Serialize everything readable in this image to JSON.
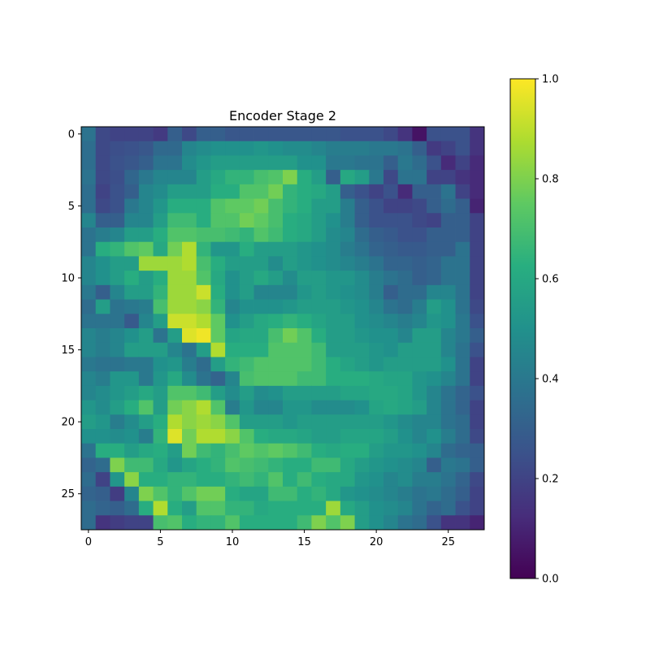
{
  "chart_data": {
    "type": "heatmap",
    "title": "Encoder Stage 2",
    "xlabel": "",
    "ylabel": "",
    "rows": 28,
    "cols": 28,
    "x_ticks": [
      0,
      5,
      10,
      15,
      20,
      25
    ],
    "y_ticks": [
      0,
      5,
      10,
      15,
      20,
      25
    ],
    "colorbar": {
      "min": 0.0,
      "max": 1.0,
      "ticks": [
        0.0,
        0.2,
        0.4,
        0.6,
        0.8,
        1.0
      ],
      "tick_labels": [
        "0.0",
        "0.2",
        "0.4",
        "0.6",
        "0.8",
        "1.0"
      ],
      "colormap": "viridis"
    },
    "values": [
      [
        0.38,
        0.22,
        0.2,
        0.2,
        0.2,
        0.17,
        0.3,
        0.22,
        0.3,
        0.3,
        0.27,
        0.27,
        0.27,
        0.27,
        0.27,
        0.27,
        0.27,
        0.27,
        0.25,
        0.25,
        0.25,
        0.22,
        0.15,
        0.05,
        0.25,
        0.25,
        0.25,
        0.15
      ],
      [
        0.36,
        0.22,
        0.24,
        0.25,
        0.27,
        0.34,
        0.34,
        0.45,
        0.48,
        0.5,
        0.5,
        0.5,
        0.52,
        0.5,
        0.48,
        0.48,
        0.45,
        0.42,
        0.42,
        0.42,
        0.4,
        0.4,
        0.38,
        0.3,
        0.17,
        0.2,
        0.25,
        0.15
      ],
      [
        0.36,
        0.22,
        0.25,
        0.27,
        0.3,
        0.38,
        0.38,
        0.48,
        0.52,
        0.55,
        0.55,
        0.55,
        0.55,
        0.55,
        0.55,
        0.5,
        0.5,
        0.4,
        0.4,
        0.38,
        0.38,
        0.3,
        0.4,
        0.35,
        0.25,
        0.12,
        0.2,
        0.12
      ],
      [
        0.38,
        0.22,
        0.24,
        0.33,
        0.4,
        0.45,
        0.45,
        0.45,
        0.55,
        0.6,
        0.65,
        0.65,
        0.7,
        0.72,
        0.8,
        0.62,
        0.55,
        0.3,
        0.6,
        0.55,
        0.4,
        0.22,
        0.38,
        0.38,
        0.2,
        0.2,
        0.15,
        0.12
      ],
      [
        0.36,
        0.2,
        0.25,
        0.3,
        0.45,
        0.48,
        0.55,
        0.55,
        0.55,
        0.62,
        0.62,
        0.72,
        0.72,
        0.78,
        0.65,
        0.62,
        0.6,
        0.55,
        0.3,
        0.25,
        0.2,
        0.25,
        0.12,
        0.3,
        0.3,
        0.38,
        0.2,
        0.12
      ],
      [
        0.36,
        0.22,
        0.25,
        0.4,
        0.45,
        0.52,
        0.62,
        0.62,
        0.62,
        0.72,
        0.75,
        0.75,
        0.78,
        0.7,
        0.65,
        0.62,
        0.55,
        0.55,
        0.42,
        0.3,
        0.25,
        0.2,
        0.2,
        0.22,
        0.3,
        0.35,
        0.3,
        0.1
      ],
      [
        0.45,
        0.3,
        0.3,
        0.45,
        0.45,
        0.55,
        0.68,
        0.68,
        0.62,
        0.72,
        0.72,
        0.78,
        0.75,
        0.7,
        0.62,
        0.6,
        0.55,
        0.5,
        0.42,
        0.3,
        0.25,
        0.25,
        0.25,
        0.22,
        0.2,
        0.3,
        0.3,
        0.2
      ],
      [
        0.38,
        0.42,
        0.45,
        0.55,
        0.55,
        0.62,
        0.72,
        0.72,
        0.7,
        0.7,
        0.68,
        0.65,
        0.72,
        0.68,
        0.62,
        0.6,
        0.55,
        0.48,
        0.45,
        0.35,
        0.3,
        0.28,
        0.25,
        0.25,
        0.3,
        0.3,
        0.3,
        0.2
      ],
      [
        0.38,
        0.62,
        0.65,
        0.72,
        0.75,
        0.6,
        0.78,
        0.88,
        0.65,
        0.52,
        0.52,
        0.62,
        0.55,
        0.55,
        0.55,
        0.52,
        0.5,
        0.48,
        0.42,
        0.38,
        0.32,
        0.3,
        0.28,
        0.28,
        0.3,
        0.3,
        0.38,
        0.2
      ],
      [
        0.45,
        0.5,
        0.55,
        0.55,
        0.85,
        0.85,
        0.85,
        0.88,
        0.7,
        0.62,
        0.55,
        0.55,
        0.55,
        0.48,
        0.55,
        0.52,
        0.5,
        0.48,
        0.45,
        0.42,
        0.38,
        0.32,
        0.32,
        0.3,
        0.32,
        0.38,
        0.38,
        0.2
      ],
      [
        0.45,
        0.5,
        0.55,
        0.62,
        0.55,
        0.62,
        0.85,
        0.85,
        0.72,
        0.6,
        0.5,
        0.55,
        0.6,
        0.55,
        0.48,
        0.55,
        0.55,
        0.52,
        0.52,
        0.48,
        0.42,
        0.38,
        0.35,
        0.3,
        0.32,
        0.38,
        0.38,
        0.2
      ],
      [
        0.4,
        0.3,
        0.45,
        0.55,
        0.55,
        0.65,
        0.85,
        0.85,
        0.92,
        0.62,
        0.5,
        0.55,
        0.45,
        0.45,
        0.45,
        0.52,
        0.55,
        0.52,
        0.5,
        0.48,
        0.42,
        0.3,
        0.35,
        0.35,
        0.45,
        0.45,
        0.38,
        0.2
      ],
      [
        0.35,
        0.55,
        0.38,
        0.4,
        0.42,
        0.7,
        0.85,
        0.85,
        0.82,
        0.65,
        0.45,
        0.5,
        0.5,
        0.5,
        0.52,
        0.55,
        0.55,
        0.55,
        0.52,
        0.5,
        0.45,
        0.38,
        0.35,
        0.42,
        0.55,
        0.5,
        0.38,
        0.22
      ],
      [
        0.38,
        0.38,
        0.38,
        0.28,
        0.45,
        0.55,
        0.92,
        0.92,
        0.88,
        0.75,
        0.5,
        0.55,
        0.6,
        0.62,
        0.65,
        0.62,
        0.58,
        0.55,
        0.55,
        0.5,
        0.48,
        0.45,
        0.42,
        0.45,
        0.52,
        0.5,
        0.4,
        0.25
      ],
      [
        0.45,
        0.42,
        0.45,
        0.5,
        0.55,
        0.38,
        0.55,
        0.95,
        0.98,
        0.75,
        0.58,
        0.6,
        0.6,
        0.7,
        0.78,
        0.72,
        0.62,
        0.55,
        0.55,
        0.52,
        0.5,
        0.5,
        0.45,
        0.55,
        0.55,
        0.45,
        0.4,
        0.3
      ],
      [
        0.45,
        0.42,
        0.45,
        0.55,
        0.55,
        0.55,
        0.45,
        0.38,
        0.55,
        0.88,
        0.62,
        0.62,
        0.62,
        0.72,
        0.72,
        0.72,
        0.68,
        0.55,
        0.55,
        0.55,
        0.52,
        0.5,
        0.55,
        0.55,
        0.55,
        0.45,
        0.38,
        0.25
      ],
      [
        0.4,
        0.38,
        0.38,
        0.4,
        0.4,
        0.5,
        0.52,
        0.42,
        0.35,
        0.55,
        0.65,
        0.68,
        0.72,
        0.72,
        0.72,
        0.72,
        0.68,
        0.62,
        0.58,
        0.55,
        0.52,
        0.55,
        0.55,
        0.55,
        0.55,
        0.5,
        0.38,
        0.2
      ],
      [
        0.45,
        0.42,
        0.52,
        0.52,
        0.4,
        0.52,
        0.6,
        0.48,
        0.38,
        0.32,
        0.45,
        0.7,
        0.72,
        0.72,
        0.72,
        0.68,
        0.68,
        0.62,
        0.62,
        0.62,
        0.6,
        0.58,
        0.58,
        0.52,
        0.5,
        0.45,
        0.38,
        0.2
      ],
      [
        0.45,
        0.48,
        0.52,
        0.55,
        0.6,
        0.55,
        0.72,
        0.72,
        0.68,
        0.55,
        0.48,
        0.55,
        0.48,
        0.5,
        0.55,
        0.55,
        0.55,
        0.55,
        0.58,
        0.58,
        0.6,
        0.6,
        0.58,
        0.52,
        0.45,
        0.38,
        0.32,
        0.25
      ],
      [
        0.52,
        0.48,
        0.55,
        0.62,
        0.72,
        0.55,
        0.78,
        0.82,
        0.88,
        0.72,
        0.42,
        0.52,
        0.45,
        0.45,
        0.52,
        0.52,
        0.48,
        0.48,
        0.48,
        0.5,
        0.58,
        0.6,
        0.58,
        0.55,
        0.45,
        0.38,
        0.32,
        0.2
      ],
      [
        0.55,
        0.52,
        0.42,
        0.48,
        0.55,
        0.62,
        0.88,
        0.82,
        0.85,
        0.82,
        0.72,
        0.55,
        0.55,
        0.55,
        0.52,
        0.55,
        0.55,
        0.55,
        0.55,
        0.55,
        0.55,
        0.52,
        0.48,
        0.45,
        0.45,
        0.38,
        0.35,
        0.2
      ],
      [
        0.5,
        0.5,
        0.48,
        0.5,
        0.42,
        0.65,
        0.95,
        0.78,
        0.88,
        0.88,
        0.82,
        0.72,
        0.62,
        0.6,
        0.6,
        0.58,
        0.55,
        0.55,
        0.58,
        0.58,
        0.58,
        0.55,
        0.5,
        0.45,
        0.5,
        0.42,
        0.35,
        0.22
      ],
      [
        0.38,
        0.62,
        0.62,
        0.55,
        0.6,
        0.62,
        0.55,
        0.78,
        0.68,
        0.65,
        0.7,
        0.75,
        0.72,
        0.75,
        0.72,
        0.68,
        0.62,
        0.6,
        0.62,
        0.62,
        0.55,
        0.52,
        0.52,
        0.5,
        0.45,
        0.35,
        0.32,
        0.3
      ],
      [
        0.32,
        0.35,
        0.8,
        0.68,
        0.68,
        0.6,
        0.52,
        0.58,
        0.62,
        0.65,
        0.72,
        0.7,
        0.68,
        0.65,
        0.62,
        0.62,
        0.68,
        0.68,
        0.6,
        0.55,
        0.52,
        0.5,
        0.48,
        0.45,
        0.3,
        0.4,
        0.38,
        0.3
      ],
      [
        0.35,
        0.2,
        0.52,
        0.82,
        0.62,
        0.62,
        0.65,
        0.65,
        0.62,
        0.62,
        0.65,
        0.68,
        0.65,
        0.72,
        0.62,
        0.68,
        0.62,
        0.6,
        0.6,
        0.52,
        0.5,
        0.45,
        0.48,
        0.42,
        0.42,
        0.38,
        0.32,
        0.22
      ],
      [
        0.32,
        0.3,
        0.18,
        0.45,
        0.8,
        0.72,
        0.65,
        0.72,
        0.78,
        0.78,
        0.62,
        0.58,
        0.58,
        0.68,
        0.68,
        0.62,
        0.65,
        0.6,
        0.52,
        0.5,
        0.48,
        0.45,
        0.42,
        0.38,
        0.4,
        0.35,
        0.3,
        0.2
      ],
      [
        0.35,
        0.32,
        0.3,
        0.35,
        0.62,
        0.88,
        0.62,
        0.55,
        0.72,
        0.72,
        0.65,
        0.65,
        0.6,
        0.62,
        0.62,
        0.62,
        0.62,
        0.85,
        0.6,
        0.55,
        0.5,
        0.48,
        0.45,
        0.38,
        0.32,
        0.35,
        0.25,
        0.2
      ],
      [
        0.35,
        0.15,
        0.18,
        0.2,
        0.2,
        0.7,
        0.72,
        0.62,
        0.65,
        0.65,
        0.72,
        0.62,
        0.62,
        0.62,
        0.62,
        0.68,
        0.8,
        0.72,
        0.8,
        0.55,
        0.5,
        0.45,
        0.38,
        0.35,
        0.25,
        0.15,
        0.15,
        0.1
      ]
    ]
  }
}
